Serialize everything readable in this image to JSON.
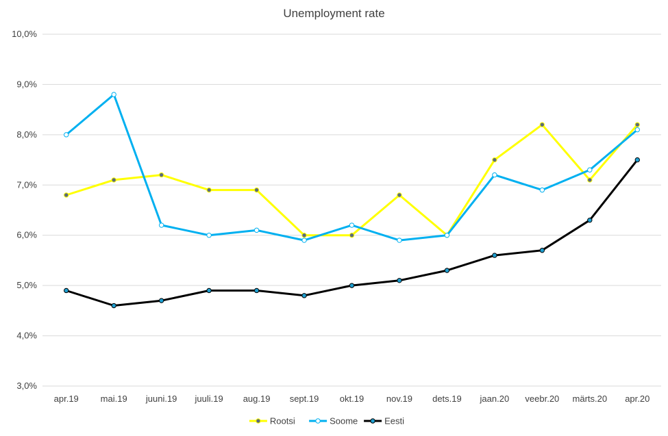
{
  "chart_data": {
    "type": "line",
    "title": "Unemployment rate",
    "xlabel": "",
    "ylabel": "",
    "categories": [
      "apr.19",
      "mai.19",
      "juuni.19",
      "juuli.19",
      "aug.19",
      "sept.19",
      "okt.19",
      "nov.19",
      "dets.19",
      "jaan.20",
      "veebr.20",
      "märts.20",
      "apr.20"
    ],
    "ylim": [
      3.0,
      10.0
    ],
    "yticks": [
      3.0,
      4.0,
      5.0,
      6.0,
      7.0,
      8.0,
      9.0,
      10.0
    ],
    "ytick_labels": [
      "3,0%",
      "4,0%",
      "5,0%",
      "6,0%",
      "7,0%",
      "8,0%",
      "9,0%",
      "10,0%"
    ],
    "grid": true,
    "legend_position": "bottom",
    "series": [
      {
        "name": "Rootsi",
        "color": "#FFFF00",
        "marker_fill": "#5B6B7B",
        "values": [
          6.8,
          7.1,
          7.2,
          6.9,
          6.9,
          6.0,
          6.0,
          6.8,
          6.0,
          7.5,
          8.2,
          7.1,
          8.2
        ]
      },
      {
        "name": "Soome",
        "color": "#00B0F0",
        "marker_fill": "#FFFFFF",
        "values": [
          8.0,
          8.8,
          6.2,
          6.0,
          6.1,
          5.9,
          6.2,
          5.9,
          6.0,
          7.2,
          6.9,
          7.3,
          8.1
        ]
      },
      {
        "name": "Eesti",
        "color": "#000000",
        "marker_fill": "#1F9FD0",
        "values": [
          4.9,
          4.6,
          4.7,
          4.9,
          4.9,
          4.8,
          5.0,
          5.1,
          5.3,
          5.6,
          5.7,
          6.3,
          7.5
        ]
      }
    ]
  }
}
